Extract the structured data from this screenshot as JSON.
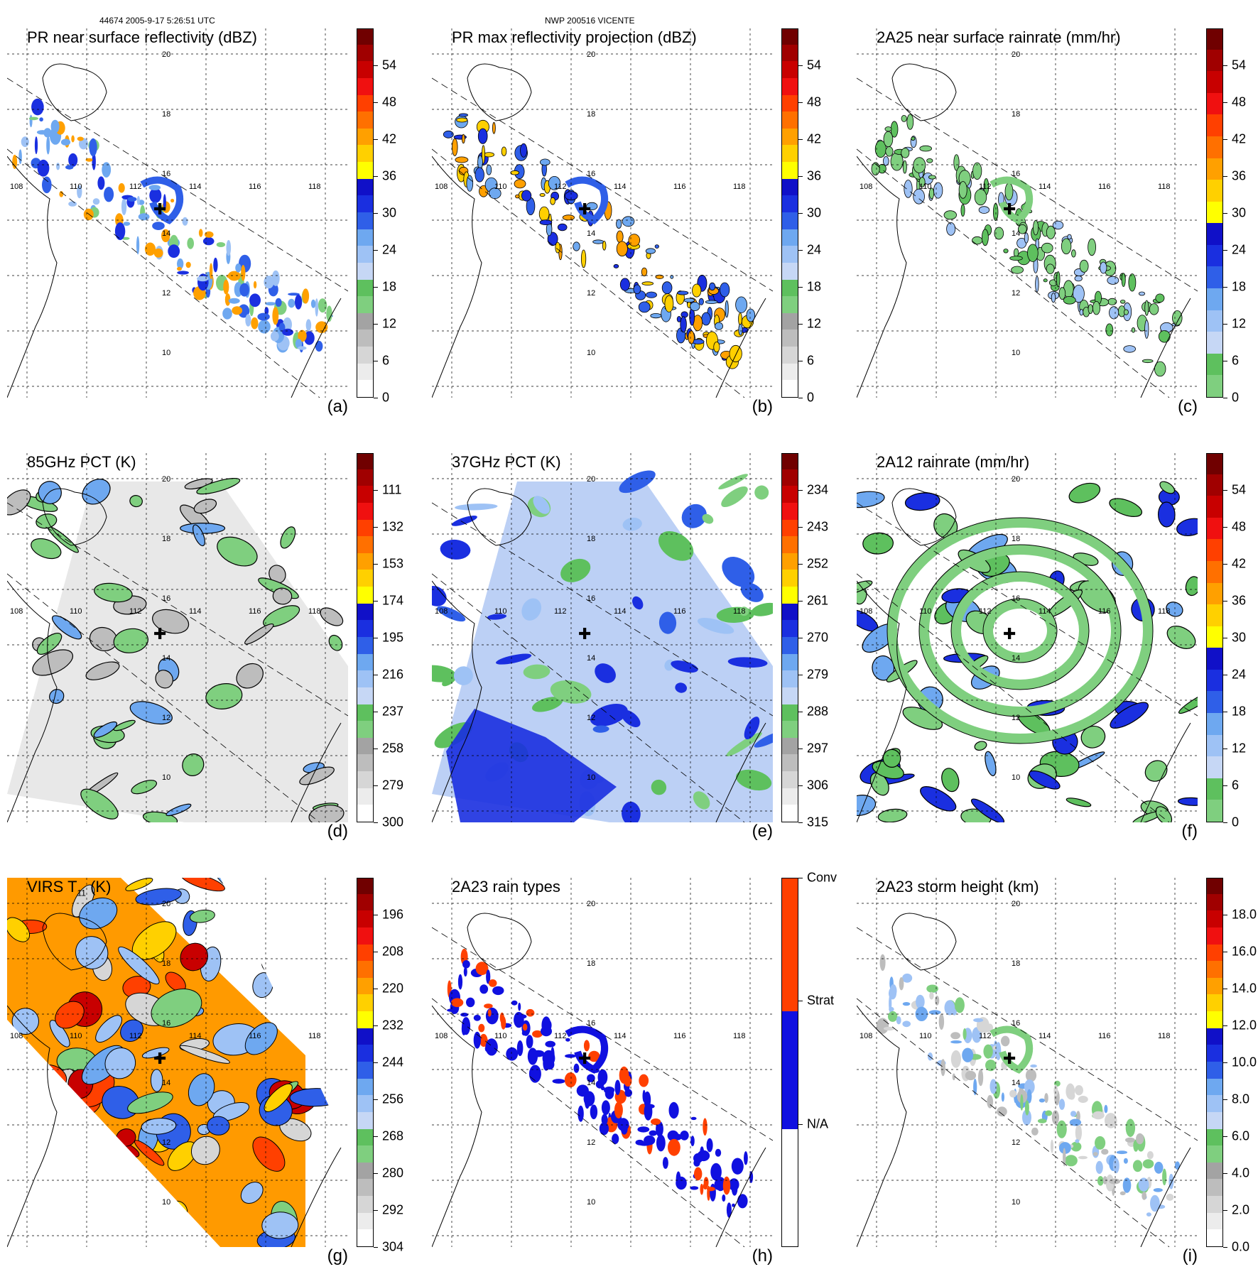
{
  "header": {
    "left": "44674 2005-9-17 5:26:51 UTC",
    "center": "NWP 200516 VICENTE"
  },
  "panels": [
    {
      "id": "a",
      "title": "PR near surface reflectivity (dBZ)",
      "label": "(a)",
      "type": "pr",
      "colorbar": {
        "colors": [
          "#ffffff",
          "#ececec",
          "#d6d6d6",
          "#bdbdbd",
          "#a3a3a3",
          "#7fcf7f",
          "#5ec05e",
          "#c6d7f5",
          "#9ec2f5",
          "#6ea8f0",
          "#2f5fe8",
          "#1a2fe0",
          "#1010c8",
          "#ffff00",
          "#ffd000",
          "#ffa000",
          "#ff7000",
          "#ff4000",
          "#f01010",
          "#c80000",
          "#a00000",
          "#700000"
        ],
        "ticks": [
          "0",
          "6",
          "12",
          "18",
          "24",
          "30",
          "36",
          "42",
          "48",
          "54"
        ]
      }
    },
    {
      "id": "b",
      "title": "PR max reflectivity projection (dBZ)",
      "label": "(b)",
      "type": "pr",
      "colorbar": {
        "colors": [
          "#ffffff",
          "#ececec",
          "#d6d6d6",
          "#bdbdbd",
          "#a3a3a3",
          "#7fcf7f",
          "#5ec05e",
          "#c6d7f5",
          "#9ec2f5",
          "#6ea8f0",
          "#2f5fe8",
          "#1a2fe0",
          "#1010c8",
          "#ffff00",
          "#ffd000",
          "#ffa000",
          "#ff7000",
          "#ff4000",
          "#f01010",
          "#c80000",
          "#a00000",
          "#700000"
        ],
        "ticks": [
          "0",
          "6",
          "12",
          "18",
          "24",
          "30",
          "36",
          "42",
          "48",
          "54"
        ]
      }
    },
    {
      "id": "c",
      "title": "2A25 near surface rainrate (mm/hr)",
      "label": "(c)",
      "type": "pr",
      "colorbar": {
        "colors": [
          "#7fcf7f",
          "#5ec05e",
          "#c6d7f5",
          "#9ec2f5",
          "#6ea8f0",
          "#2f5fe8",
          "#1a2fe0",
          "#1010c8",
          "#ffff00",
          "#ffd000",
          "#ffa000",
          "#ff7000",
          "#ff4000",
          "#f01010",
          "#c80000",
          "#a00000",
          "#700000"
        ],
        "ticks": [
          "0",
          "6",
          "12",
          "18",
          "24",
          "30",
          "36",
          "42",
          "48",
          "54"
        ]
      }
    },
    {
      "id": "d",
      "title": "85GHz PCT (K)",
      "label": "(d)",
      "type": "tmi",
      "colorbar": {
        "colors": [
          "#ffffff",
          "#ececec",
          "#d6d6d6",
          "#bdbdbd",
          "#a3a3a3",
          "#7fcf7f",
          "#5ec05e",
          "#c6d7f5",
          "#9ec2f5",
          "#6ea8f0",
          "#2f5fe8",
          "#1a2fe0",
          "#1010c8",
          "#ffff00",
          "#ffd000",
          "#ffa000",
          "#ff7000",
          "#ff4000",
          "#f01010",
          "#c80000",
          "#a00000",
          "#700000"
        ],
        "ticks": [
          "300",
          "279",
          "258",
          "237",
          "216",
          "195",
          "174",
          "153",
          "132",
          "111"
        ]
      }
    },
    {
      "id": "e",
      "title": "37GHz PCT (K)",
      "label": "(e)",
      "type": "tmi",
      "colorbar": {
        "colors": [
          "#ffffff",
          "#ececec",
          "#d6d6d6",
          "#bdbdbd",
          "#a3a3a3",
          "#7fcf7f",
          "#5ec05e",
          "#c6d7f5",
          "#9ec2f5",
          "#6ea8f0",
          "#2f5fe8",
          "#1a2fe0",
          "#1010c8",
          "#ffff00",
          "#ffd000",
          "#ffa000",
          "#ff7000",
          "#ff4000",
          "#f01010",
          "#c80000",
          "#a00000",
          "#700000"
        ],
        "ticks": [
          "315",
          "306",
          "297",
          "288",
          "279",
          "270",
          "261",
          "252",
          "243",
          "234"
        ]
      }
    },
    {
      "id": "f",
      "title": "2A12 rainrate (mm/hr)",
      "label": "(f)",
      "type": "tmi",
      "colorbar": {
        "colors": [
          "#7fcf7f",
          "#5ec05e",
          "#c6d7f5",
          "#9ec2f5",
          "#6ea8f0",
          "#2f5fe8",
          "#1a2fe0",
          "#1010c8",
          "#ffff00",
          "#ffd000",
          "#ffa000",
          "#ff7000",
          "#ff4000",
          "#f01010",
          "#c80000",
          "#a00000",
          "#700000"
        ],
        "ticks": [
          "0",
          "6",
          "12",
          "18",
          "24",
          "30",
          "36",
          "42",
          "48",
          "54"
        ]
      }
    },
    {
      "id": "g",
      "title": "VIRS T   (K)",
      "sub": "11",
      "label": "(g)",
      "type": "virs",
      "colorbar": {
        "colors": [
          "#ffffff",
          "#ececec",
          "#d6d6d6",
          "#bdbdbd",
          "#a3a3a3",
          "#7fcf7f",
          "#5ec05e",
          "#c6d7f5",
          "#9ec2f5",
          "#6ea8f0",
          "#2f5fe8",
          "#1a2fe0",
          "#1010c8",
          "#ffff00",
          "#ffd000",
          "#ffa000",
          "#ff7000",
          "#ff4000",
          "#f01010",
          "#c80000",
          "#a00000",
          "#700000"
        ],
        "ticks": [
          "304",
          "292",
          "280",
          "268",
          "256",
          "244",
          "232",
          "220",
          "208",
          "196"
        ]
      }
    },
    {
      "id": "h",
      "title": "2A23 rain types",
      "label": "(h)",
      "type": "pr",
      "colorbar": {
        "colors": [
          "#ffffff",
          "#ffffff",
          "#ffffff",
          "#ffffff",
          "#ffffff",
          "#ffffff",
          "#ffffff",
          "#1010e0",
          "#1010e0",
          "#1010e0",
          "#1010e0",
          "#1010e0",
          "#1010e0",
          "#1010e0",
          "#ff4000",
          "#ff4000",
          "#ff4000",
          "#ff4000",
          "#ff4000",
          "#ff4000",
          "#ff4000",
          "#ff4000"
        ],
        "ticks": [
          "",
          "N/A",
          "",
          "Strat",
          "",
          "Conv"
        ]
      }
    },
    {
      "id": "i",
      "title": "2A23 storm height (km)",
      "label": "(i)",
      "type": "pr",
      "colorbar": {
        "colors": [
          "#ffffff",
          "#ececec",
          "#d6d6d6",
          "#bdbdbd",
          "#a3a3a3",
          "#7fcf7f",
          "#5ec05e",
          "#c6d7f5",
          "#9ec2f5",
          "#6ea8f0",
          "#2f5fe8",
          "#1a2fe0",
          "#1010c8",
          "#ffff00",
          "#ffd000",
          "#ffa000",
          "#ff7000",
          "#ff4000",
          "#f01010",
          "#c80000",
          "#a00000",
          "#700000"
        ],
        "ticks": [
          "0.0",
          "2.0",
          "4.0",
          "6.0",
          "8.0",
          "10.0",
          "12.0",
          "14.0",
          "16.0",
          "18.0"
        ]
      }
    }
  ],
  "map": {
    "lon_labels": [
      "108",
      "110",
      "112",
      "114",
      "116",
      "118"
    ],
    "lat_labels": [
      "20",
      "18",
      "16",
      "14",
      "12",
      "10"
    ]
  }
}
